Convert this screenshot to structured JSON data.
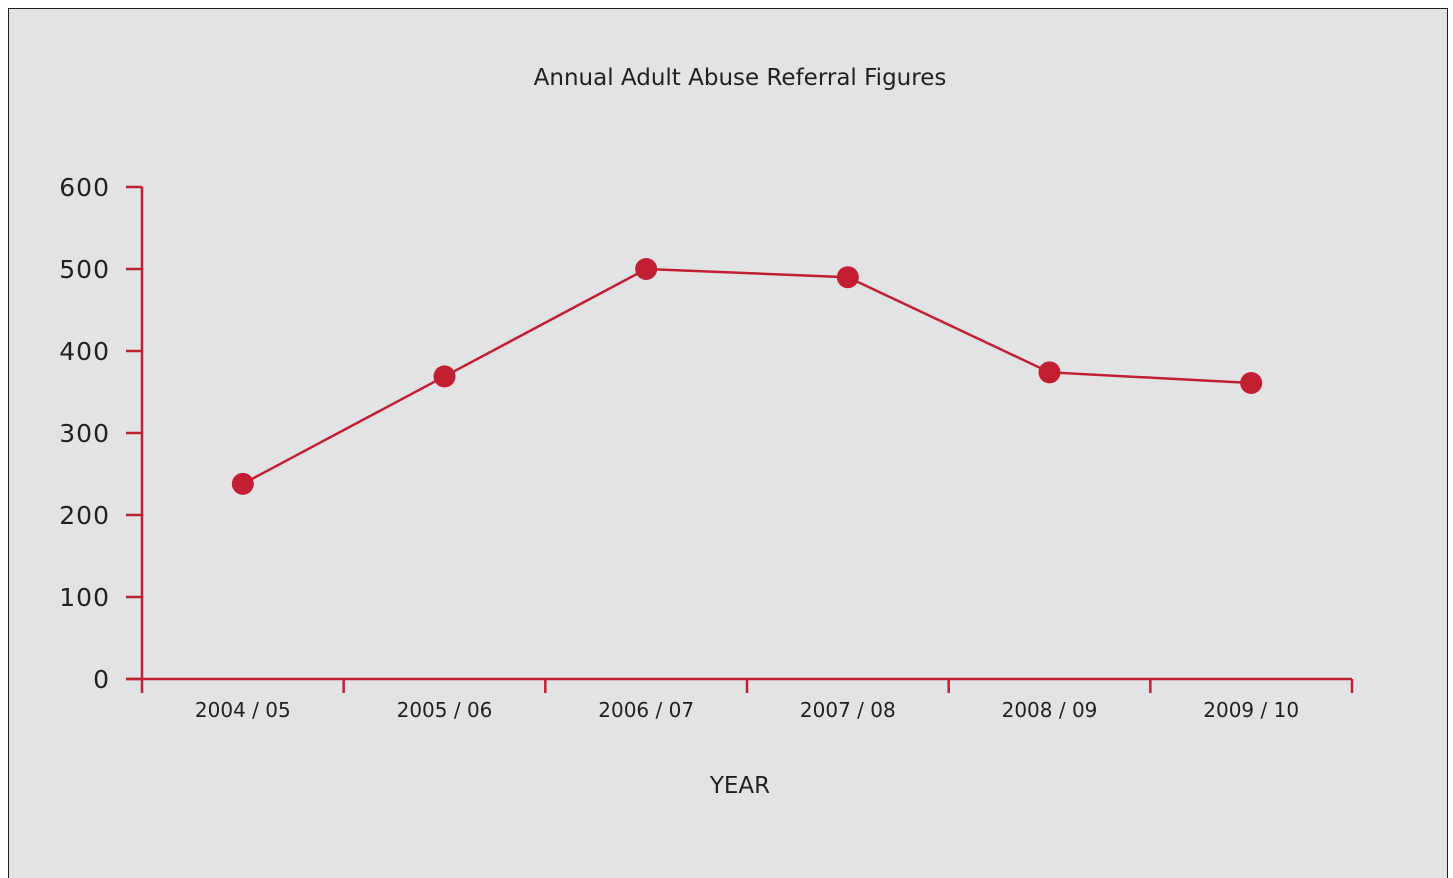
{
  "chart_data": {
    "type": "line",
    "title": "Annual Adult Abuse Referral Figures",
    "xlabel": "YEAR",
    "ylabel": "",
    "categories": [
      "2004 / 05",
      "2005 / 06",
      "2006 / 07",
      "2007 / 08",
      "2008 / 09",
      "2009 / 10"
    ],
    "values": [
      238,
      369,
      500,
      490,
      374,
      361
    ],
    "ylim": [
      0,
      600
    ],
    "yticks": [
      "0",
      "100",
      "200",
      "300",
      "400",
      "500",
      "600"
    ],
    "grid": false,
    "legend": "none",
    "colors": {
      "series": "#c21f33",
      "axis": "#c21f33",
      "background": "#e2e3e5",
      "text": "#231f20"
    }
  }
}
